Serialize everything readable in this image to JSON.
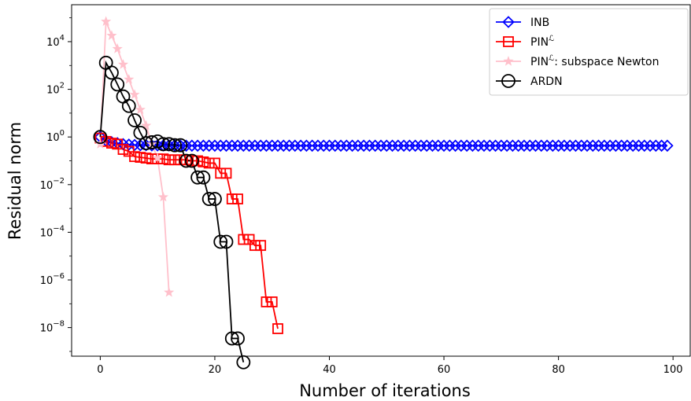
{
  "chart_data": {
    "type": "line",
    "title": "",
    "xlabel": "Number of iterations",
    "ylabel": "Residual norm",
    "xlim": [
      -5,
      103
    ],
    "ylog": true,
    "ylim_exp": [
      -9.2,
      5.55
    ],
    "x_ticks": [
      0,
      20,
      40,
      60,
      80,
      100
    ],
    "y_tick_exponents": [
      -8,
      -6,
      -4,
      -2,
      0,
      2,
      4
    ],
    "y_tick_base": "10",
    "grid": false,
    "legend_position": "top-right",
    "series": [
      {
        "name": "INB",
        "color": "#0000ff",
        "marker": "diamond",
        "x": [
          0,
          1,
          2,
          3,
          4,
          5,
          6,
          7,
          8,
          9,
          10,
          11,
          12,
          13,
          14,
          15,
          16,
          17,
          18,
          19,
          20,
          21,
          22,
          23,
          24,
          25,
          26,
          27,
          28,
          29,
          30,
          31,
          32,
          33,
          34,
          35,
          36,
          37,
          38,
          39,
          40,
          41,
          42,
          43,
          44,
          45,
          46,
          47,
          48,
          49,
          50,
          51,
          52,
          53,
          54,
          55,
          56,
          57,
          58,
          59,
          60,
          61,
          62,
          63,
          64,
          65,
          66,
          67,
          68,
          69,
          70,
          71,
          72,
          73,
          74,
          75,
          76,
          77,
          78,
          79,
          80,
          81,
          82,
          83,
          84,
          85,
          86,
          87,
          88,
          89,
          90,
          91,
          92,
          93,
          94,
          95,
          96,
          97,
          98,
          99
        ],
        "y": [
          1.0,
          0.7,
          0.6,
          0.55,
          0.5,
          0.48,
          0.46,
          0.45,
          0.45,
          0.44,
          0.44,
          0.44,
          0.44,
          0.44,
          0.43,
          0.43,
          0.43,
          0.43,
          0.43,
          0.43,
          0.43,
          0.43,
          0.43,
          0.43,
          0.43,
          0.43,
          0.43,
          0.43,
          0.43,
          0.43,
          0.43,
          0.43,
          0.43,
          0.43,
          0.43,
          0.43,
          0.43,
          0.43,
          0.43,
          0.43,
          0.43,
          0.43,
          0.43,
          0.43,
          0.43,
          0.43,
          0.43,
          0.43,
          0.43,
          0.43,
          0.43,
          0.43,
          0.43,
          0.43,
          0.43,
          0.43,
          0.43,
          0.43,
          0.43,
          0.43,
          0.43,
          0.43,
          0.43,
          0.43,
          0.43,
          0.43,
          0.43,
          0.43,
          0.43,
          0.43,
          0.43,
          0.43,
          0.43,
          0.43,
          0.43,
          0.43,
          0.43,
          0.43,
          0.43,
          0.43,
          0.43,
          0.43,
          0.43,
          0.43,
          0.43,
          0.43,
          0.43,
          0.43,
          0.43,
          0.43,
          0.43,
          0.43,
          0.43,
          0.43,
          0.43,
          0.43,
          0.43,
          0.43,
          0.43,
          0.43
        ]
      },
      {
        "name": "PIN^ℒ",
        "color": "#ff0000",
        "marker": "square",
        "x": [
          0,
          1,
          2,
          3,
          4,
          5,
          6,
          7,
          8,
          9,
          10,
          11,
          12,
          13,
          14,
          15,
          16,
          17,
          18,
          19,
          20,
          21,
          22,
          23,
          24,
          25,
          26,
          27,
          28,
          29,
          30,
          31
        ],
        "y": [
          0.9,
          0.65,
          0.55,
          0.5,
          0.3,
          0.25,
          0.15,
          0.14,
          0.13,
          0.12,
          0.12,
          0.12,
          0.11,
          0.11,
          0.11,
          0.11,
          0.1,
          0.1,
          0.09,
          0.08,
          0.08,
          0.03,
          0.03,
          0.0025,
          0.0025,
          5e-05,
          5e-05,
          2.8e-05,
          2.8e-05,
          1.2e-07,
          1.2e-07,
          9e-09
        ]
      },
      {
        "name": "PIN^ℒ: subspace Newton",
        "color": "#ffc0cb",
        "marker": "star",
        "x": [
          0,
          1,
          2,
          3,
          4,
          5,
          6,
          7,
          8,
          9,
          10,
          11,
          12
        ],
        "y": [
          0.5,
          70000,
          18000,
          5000,
          1100,
          260,
          60,
          14,
          3,
          0.5,
          0.13,
          0.003,
          3e-07
        ]
      },
      {
        "name": "ARDN",
        "color": "#000000",
        "marker": "circle",
        "x": [
          0,
          1,
          2,
          3,
          4,
          5,
          6,
          7,
          8,
          9,
          10,
          11,
          12,
          13,
          14,
          15,
          16,
          17,
          18,
          19,
          20,
          21,
          22,
          23,
          24,
          25
        ],
        "y": [
          1.0,
          1300,
          500,
          160,
          50,
          20,
          5,
          1.5,
          0.55,
          0.6,
          0.65,
          0.5,
          0.5,
          0.45,
          0.45,
          0.1,
          0.1,
          0.02,
          0.02,
          0.0025,
          0.0025,
          4e-05,
          4e-05,
          3.5e-09,
          3.5e-09,
          3.5e-10
        ]
      }
    ]
  }
}
